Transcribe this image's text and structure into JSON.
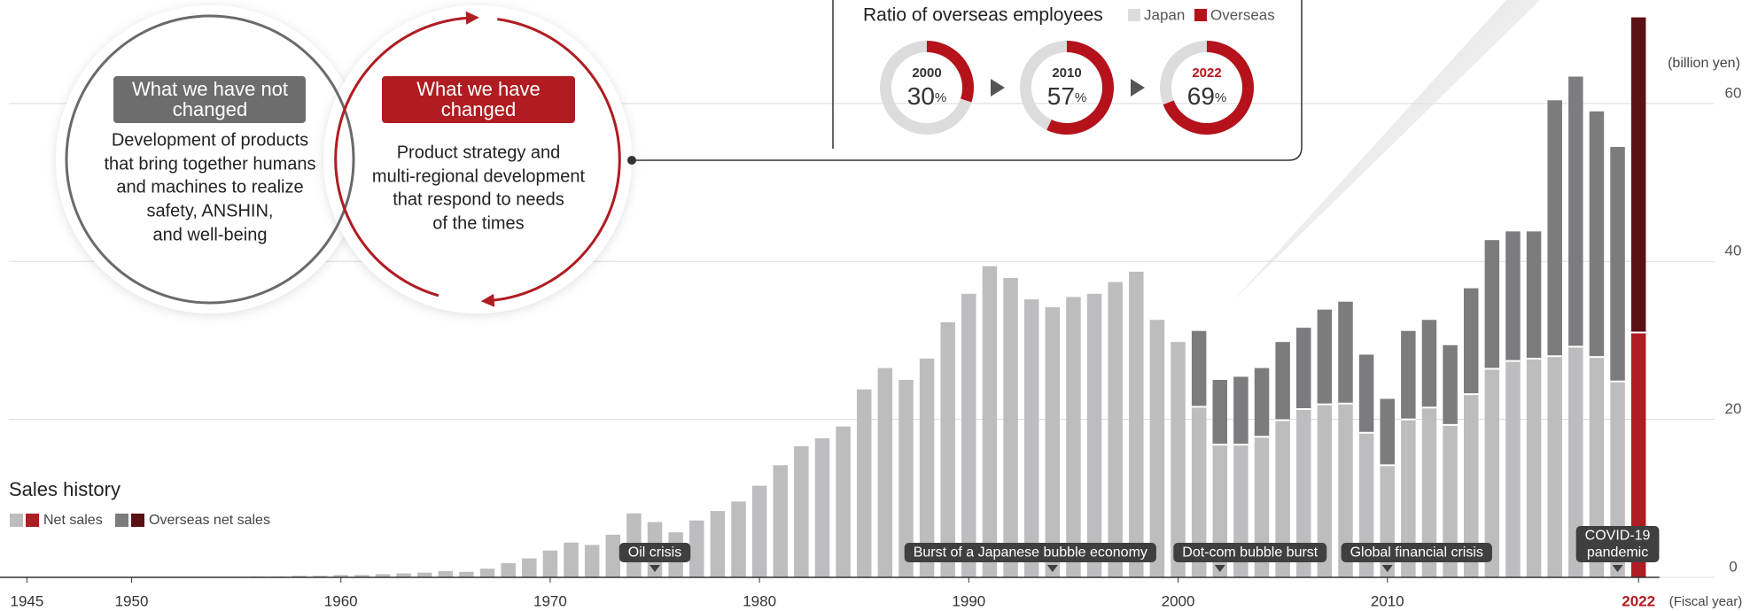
{
  "circles": {
    "left": {
      "label": [
        "What we have not",
        "changed"
      ],
      "text": [
        "Development of products",
        "that bring together humans",
        "and machines to realize",
        "safety, ANSHIN,",
        "and well-being"
      ]
    },
    "right": {
      "label": [
        "What we have",
        "changed"
      ],
      "text": [
        "Product strategy and",
        "multi-regional development",
        "that respond to needs",
        "of the times"
      ]
    }
  },
  "employees": {
    "title": "Ratio of overseas employees",
    "legend": [
      {
        "name": "Japan",
        "color": "#dcdcdc"
      },
      {
        "name": "Overseas",
        "color": "#b5121b"
      }
    ],
    "unit": "%",
    "items": [
      {
        "year": "2000",
        "value": 30
      },
      {
        "year": "2010",
        "value": 57
      },
      {
        "year": "2022",
        "value": 69
      }
    ]
  },
  "chart_data": {
    "type": "bar",
    "stacked": true,
    "title": "Sales history",
    "y_label": "(billion yen)",
    "x_label": "(Fiscal year)",
    "x": [
      1956,
      1957,
      1958,
      1959,
      1960,
      1961,
      1962,
      1963,
      1964,
      1965,
      1966,
      1967,
      1968,
      1969,
      1970,
      1971,
      1972,
      1973,
      1974,
      1975,
      1976,
      1977,
      1978,
      1979,
      1980,
      1981,
      1982,
      1983,
      1984,
      1985,
      1986,
      1987,
      1988,
      1989,
      1990,
      1991,
      1992,
      1993,
      1994,
      1995,
      1996,
      1997,
      1998,
      1999,
      2000,
      2001,
      2002,
      2003,
      2004,
      2005,
      2006,
      2007,
      2008,
      2009,
      2010,
      2011,
      2012,
      2013,
      2014,
      2015,
      2016,
      2017,
      2018,
      2019,
      2020,
      2021,
      2022
    ],
    "series": [
      {
        "name": "Net sales",
        "color": "#bdbdbf",
        "highlight_color": "#b01c22",
        "values": [
          0.1,
          0.1,
          0.2,
          0.2,
          0.3,
          0.3,
          0.4,
          0.5,
          0.6,
          0.8,
          0.7,
          1.1,
          1.8,
          2.4,
          3.4,
          4.4,
          4.1,
          5.4,
          8.1,
          7.0,
          5.7,
          7.2,
          8.4,
          9.6,
          11.6,
          14.2,
          16.6,
          17.6,
          19.1,
          23.8,
          26.5,
          25.0,
          27.7,
          32.3,
          35.9,
          39.4,
          37.9,
          35.2,
          34.2,
          35.5,
          35.9,
          37.4,
          38.7,
          32.6,
          29.8,
          21.6,
          16.8,
          16.8,
          17.8,
          19.9,
          21.3,
          21.9,
          22.0,
          18.3,
          14.2,
          20.0,
          21.5,
          19.3,
          23.2,
          26.4,
          27.4,
          27.7,
          28.0,
          29.2,
          27.9,
          24.8,
          31.0
        ]
      },
      {
        "name": "Overseas net sales",
        "color": "#7c7c7e",
        "highlight_color": "#5a1113",
        "values": [
          null,
          null,
          null,
          null,
          null,
          null,
          null,
          null,
          null,
          null,
          null,
          null,
          null,
          null,
          null,
          null,
          null,
          null,
          null,
          null,
          null,
          null,
          null,
          null,
          null,
          null,
          null,
          null,
          null,
          null,
          null,
          null,
          null,
          null,
          null,
          null,
          null,
          null,
          null,
          null,
          null,
          null,
          null,
          null,
          null,
          9.6,
          8.2,
          8.6,
          8.7,
          9.9,
          10.3,
          12.0,
          12.9,
          9.9,
          8.4,
          11.2,
          11.1,
          10.1,
          13.4,
          16.3,
          16.4,
          16.1,
          32.4,
          34.2,
          31.1,
          29.7,
          39.9
        ]
      }
    ],
    "highlight_x": 2022,
    "xlim": [
      1944,
      2023
    ],
    "ylim": [
      0,
      73
    ],
    "xticks": [
      1945,
      1950,
      1960,
      1970,
      1980,
      1990,
      2000,
      2010,
      2022
    ],
    "yticks": [
      0,
      20,
      40,
      60
    ],
    "grid": true,
    "annotations": [
      {
        "lines": [
          "Oil crisis"
        ],
        "x": 1975
      },
      {
        "lines": [
          "Burst of a Japanese bubble economy"
        ],
        "x": 1994
      },
      {
        "lines": [
          "Dot-com bubble burst"
        ],
        "x": 2002
      },
      {
        "lines": [
          "Global financial crisis"
        ],
        "x": 2010
      },
      {
        "lines": [
          "COVID-19",
          "pandemic"
        ],
        "x": 2021
      }
    ]
  }
}
